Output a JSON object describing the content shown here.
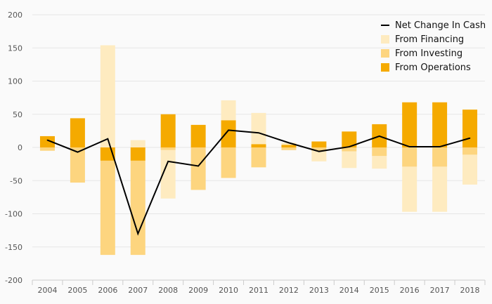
{
  "chart_data": {
    "type": "bar",
    "categories": [
      "2004",
      "2005",
      "2006",
      "2007",
      "2008",
      "2009",
      "2010",
      "2011",
      "2012",
      "2013",
      "2014",
      "2015",
      "2016",
      "2017",
      "2018"
    ],
    "series": [
      {
        "name": "From Operations",
        "values": [
          17,
          44,
          -20,
          -20,
          50,
          34,
          41,
          5,
          4,
          9,
          24,
          35,
          68,
          68,
          57
        ]
      },
      {
        "name": "From Investing",
        "values": [
          -5,
          -53,
          -142,
          -142,
          -4,
          -64,
          -46,
          -30,
          -4,
          -5,
          -6,
          -13,
          -29,
          -29,
          -11
        ]
      },
      {
        "name": "From Financing",
        "values": [
          0,
          0,
          154,
          11,
          -73,
          0,
          30,
          47,
          3,
          -16,
          -25,
          -19,
          -68,
          -68,
          -45
        ]
      },
      {
        "name": "Net Change In Cash",
        "values": [
          11,
          -7,
          13,
          -130,
          -21,
          -28,
          26,
          22,
          7,
          -6,
          1,
          17,
          1,
          1,
          14
        ]
      }
    ],
    "ylim": [
      -200,
      200
    ],
    "yticks": [
      "200",
      "150",
      "100",
      "50",
      "0",
      "-50",
      "-100",
      "-150",
      "-200"
    ],
    "colors": {
      "operations": "#F5AA00",
      "investing": "#FDD57F",
      "financing": "#FEEBC0",
      "net": "#000000"
    },
    "legend": {
      "position": "top-right"
    }
  }
}
